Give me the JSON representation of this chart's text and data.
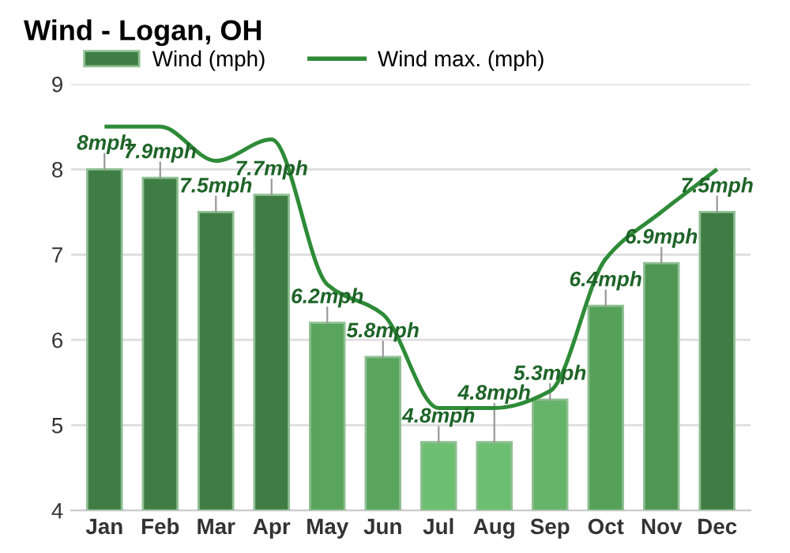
{
  "chart_data": {
    "type": "bar",
    "title": "Wind - Logan, OH",
    "categories": [
      "Jan",
      "Feb",
      "Mar",
      "Apr",
      "May",
      "Jun",
      "Jul",
      "Aug",
      "Sep",
      "Oct",
      "Nov",
      "Dec"
    ],
    "series": [
      {
        "name": "Wind (mph)",
        "color": "#3f7d45",
        "colors": [
          "#3f7d45",
          "#3f7d45",
          "#3f7d45",
          "#3f7d45",
          "#5aa55e",
          "#5aa55e",
          "#6cbf70",
          "#6cbf70",
          "#65b469",
          "#55a15a",
          "#4f9654",
          "#3f7d45"
        ],
        "values": [
          8,
          7.9,
          7.5,
          7.7,
          6.2,
          5.8,
          4.8,
          4.8,
          5.3,
          6.4,
          6.9,
          7.5
        ],
        "value_labels": [
          "8mph",
          "7.9mph",
          "7.5mph",
          "7.7mph",
          "6.2mph",
          "5.8mph",
          "4.8mph",
          "4.8mph",
          "5.3mph",
          "6.4mph",
          "6.9mph",
          "7.5mph"
        ]
      },
      {
        "name": "Wind max. (mph)",
        "type": "line",
        "color": "#2e8b37",
        "values": [
          8.5,
          8.5,
          8.1,
          8.35,
          6.65,
          6.3,
          5.2,
          5.2,
          5.4,
          6.95,
          7.5,
          8.0
        ]
      }
    ],
    "ylim": [
      4,
      9
    ],
    "yticks": [
      4,
      5,
      6,
      7,
      8,
      9
    ],
    "grid": "y",
    "legend": "top left"
  }
}
